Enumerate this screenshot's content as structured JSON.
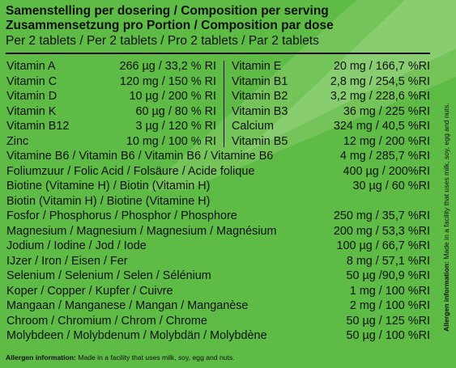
{
  "header": {
    "line1": "Samenstelling per dosering / Composition per serving",
    "line2": "Zusammensetzung pro Portion / Composition par dose",
    "line3": "Per 2 tablets / Per 2 tablets / Pro 2 tablets / Par 2 tablets"
  },
  "left_col": [
    {
      "name": "Vitamin A",
      "amount": "266 µg",
      "ri": "33,2 % RI"
    },
    {
      "name": "Vitamin C",
      "amount": "120 mg",
      "ri": "150 % RI"
    },
    {
      "name": "Vitamin D",
      "amount": "10 µg",
      "ri": "200 % RI"
    },
    {
      "name": "Vitamin K",
      "amount": "60 µg",
      "ri": "80 % RI"
    },
    {
      "name": "Vitamin B12",
      "amount": "3 µg",
      "ri": "120 % RI"
    },
    {
      "name": "Zinc",
      "amount": "10 mg",
      "ri": "100 % RI"
    }
  ],
  "right_col": [
    {
      "name": "Vitamin E",
      "amount": "20 mg",
      "ri": "166,7 %RI"
    },
    {
      "name": "Vitamin B1",
      "amount": "2,8 mg",
      "ri": "254,5 %RI"
    },
    {
      "name": "Vitamin B2",
      "amount": "3,2 mg",
      "ri": "228,6 %RI"
    },
    {
      "name": "Vitamin B3",
      "amount": "36 mg",
      "ri": "225 %RI"
    },
    {
      "name": "Calcium",
      "amount": "324 mg",
      "ri": "40,5 %RI"
    },
    {
      "name": "Vitamin B5",
      "amount": "12 mg",
      "ri": "200 %RI"
    }
  ],
  "full_rows": [
    {
      "name": "Vitamine B6 / Vitamin B6 / Vitamin B6 / Vitamine B6",
      "value": "4 mg / 285,7 %RI"
    },
    {
      "name": "Foliumzuur / Folic Acid / Folsäure / Acide folique",
      "value": "400 µg / 200%RI"
    },
    {
      "name": "Biotine (Vitamine H) / Biotin (Vitamin H)",
      "value": "30 µg / 60 %RI"
    },
    {
      "name": "Biotin (Vitamin H) / Biotine (Vitamine H)",
      "value": ""
    },
    {
      "name": "Fosfor / Phosphorus / Phosphor / Phosphore",
      "value": "250 mg / 35,7 %RI"
    },
    {
      "name": "Magnesium / Magnesium / Magnesium / Magnésium",
      "value": "200 mg / 53,3 %RI"
    },
    {
      "name": "Jodium / Iodine / Jod / Iode",
      "value": "100 µg / 66,7 %RI"
    },
    {
      "name": "IJzer / Iron / Eisen / Fer",
      "value": "8 mg / 57,1 %RI"
    },
    {
      "name": "Selenium / Selenium / Selen / Sélénium",
      "value": "50 µg /90,9 %RI"
    },
    {
      "name": "Koper / Copper / Kupfer / Cuivre",
      "value": "1 mg / 100 %RI"
    },
    {
      "name": "Mangaan / Manganese / Mangan / Manganèse",
      "value": "2 mg / 100 %RI"
    },
    {
      "name": "Chroom / Chromium / Chrom / Chrome",
      "value": "50 µg / 125 %RI"
    },
    {
      "name": "Molybdeen / Molybdenum / Molybdän / Molybdène",
      "value": "50 µg / 100 %RI"
    }
  ],
  "allergen": {
    "label": "Allergen information:",
    "text": "Made in a facility that uses milk, soy, egg and nuts."
  },
  "colors": {
    "background": "#5dbb46",
    "stripe": "#8fd276",
    "text": "#111111"
  }
}
